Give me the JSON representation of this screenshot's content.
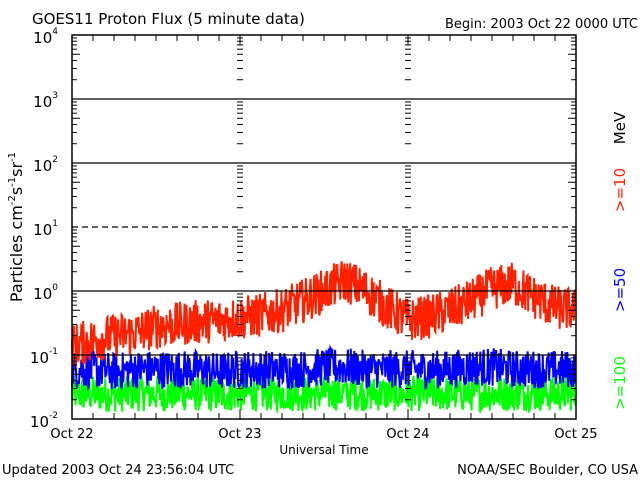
{
  "title": "GOES11 Proton Flux (5 minute data)",
  "begin": "Begin: 2003 Oct 22 0000 UTC",
  "updated": "Updated 2003 Oct 24 23:56:04 UTC",
  "credit": "NOAA/SEC Boulder, CO USA",
  "chart_data": {
    "type": "line",
    "title": "GOES11 Proton Flux (5 minute data)",
    "xlabel": "Universal Time",
    "ylabel": "Particles cm^-2 s^-1 sr^-1",
    "yscale": "log",
    "ylim": [
      0.01,
      10000
    ],
    "xlim_hours": [
      0,
      72
    ],
    "x_ticks": [
      "Oct 22",
      "Oct 23",
      "Oct 24",
      "Oct 25"
    ],
    "y_ticks": [
      {
        "base": "10",
        "exp": "-2",
        "value": 0.01
      },
      {
        "base": "10",
        "exp": "-1",
        "value": 0.1
      },
      {
        "base": "10",
        "exp": "0",
        "value": 1
      },
      {
        "base": "10",
        "exp": "1",
        "value": 10
      },
      {
        "base": "10",
        "exp": "2",
        "value": 100
      },
      {
        "base": "10",
        "exp": "3",
        "value": 1000
      },
      {
        "base": "10",
        "exp": "4",
        "value": 10000
      }
    ],
    "threshold_line": {
      "value": 10,
      "style": "dashed"
    },
    "unit_label": "MeV",
    "x_hours_envelope": [
      0,
      3,
      6,
      9,
      12,
      15,
      18,
      21,
      24,
      27,
      30,
      33,
      36,
      39,
      42,
      45,
      48,
      51,
      54,
      57,
      60,
      63,
      66,
      69,
      72
    ],
    "series": [
      {
        "name": ">=10",
        "color": "#ff2000",
        "values": [
          0.14,
          0.17,
          0.2,
          0.22,
          0.28,
          0.3,
          0.33,
          0.35,
          0.38,
          0.42,
          0.5,
          0.7,
          1.0,
          1.5,
          1.0,
          0.55,
          0.35,
          0.4,
          0.5,
          0.7,
          1.1,
          1.3,
          0.8,
          0.55,
          0.5
        ]
      },
      {
        "name": ">=50",
        "color": "#0000ff",
        "values": [
          0.06,
          0.06,
          0.055,
          0.06,
          0.06,
          0.06,
          0.06,
          0.055,
          0.06,
          0.06,
          0.06,
          0.06,
          0.065,
          0.065,
          0.06,
          0.06,
          0.06,
          0.06,
          0.06,
          0.065,
          0.065,
          0.06,
          0.06,
          0.06,
          0.06
        ]
      },
      {
        "name": ">=100",
        "color": "#00ff00",
        "values": [
          0.025,
          0.025,
          0.024,
          0.025,
          0.025,
          0.025,
          0.025,
          0.024,
          0.025,
          0.025,
          0.025,
          0.025,
          0.025,
          0.026,
          0.025,
          0.025,
          0.025,
          0.025,
          0.025,
          0.025,
          0.025,
          0.025,
          0.025,
          0.025,
          0.025
        ]
      }
    ]
  }
}
